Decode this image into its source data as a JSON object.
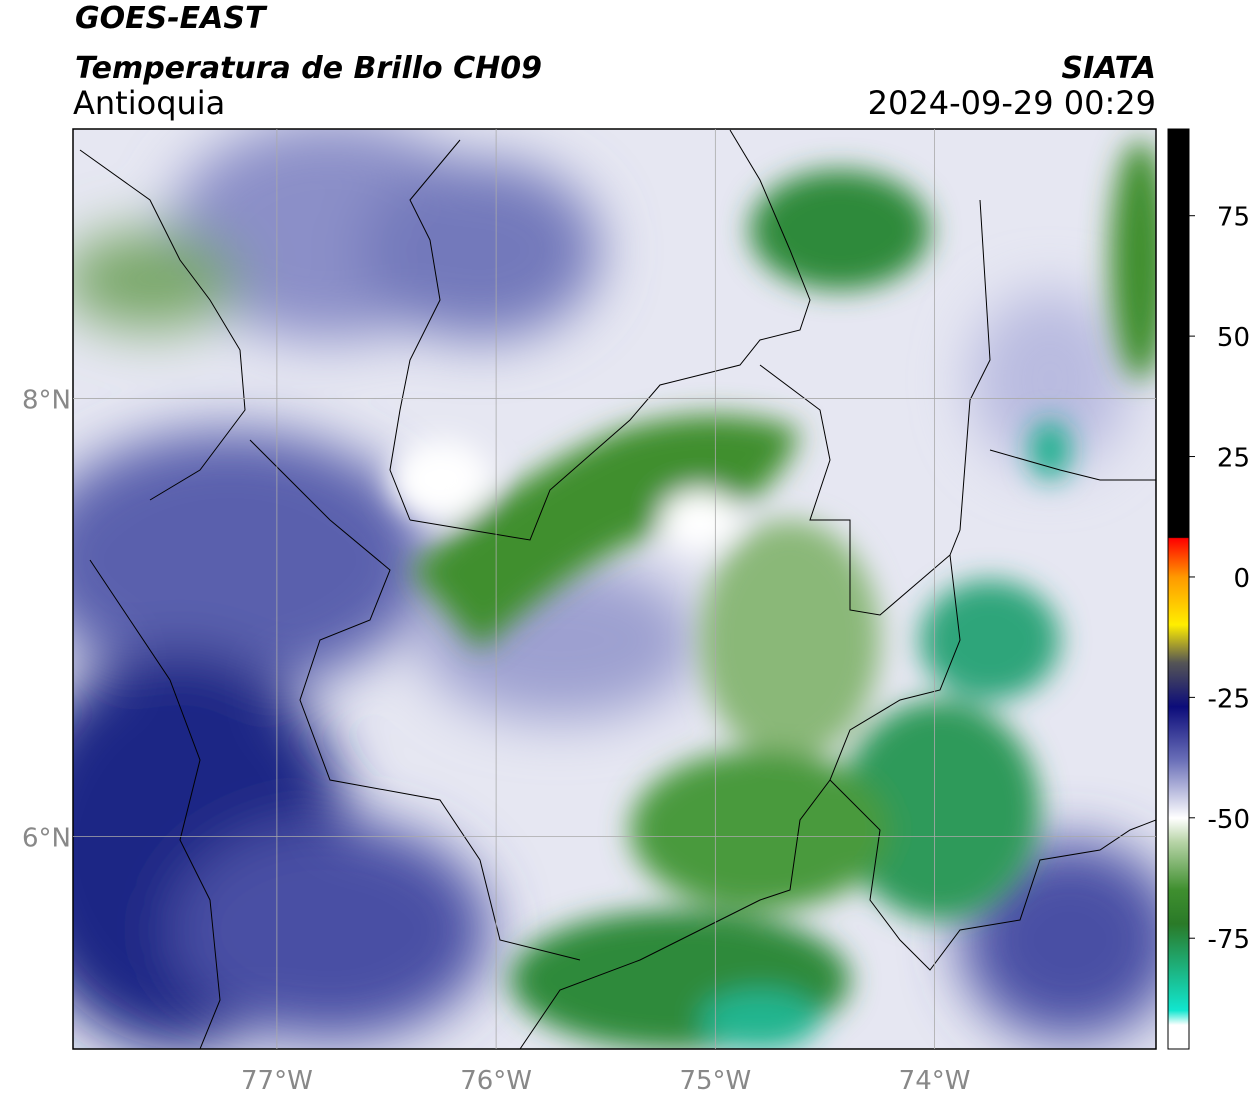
{
  "header": {
    "title": "GOES-EAST",
    "subtitle": "Temperatura de Brillo CH09",
    "region": "Antioquia",
    "source": "SIATA",
    "timestamp": "2024-09-29 00:29"
  },
  "map": {
    "lonlim": [
      -77.93,
      -72.99
    ],
    "latlim": [
      5.03,
      9.23
    ],
    "lonticks": [
      {
        "value": -77,
        "label": "77°W"
      },
      {
        "value": -76,
        "label": "76°W"
      },
      {
        "value": -75,
        "label": "75°W"
      },
      {
        "value": -74,
        "label": "74°W"
      }
    ],
    "latticks": [
      {
        "value": 8,
        "label": "8°N"
      },
      {
        "value": 6,
        "label": "6°N"
      }
    ]
  },
  "colorbar": {
    "lim": [
      -98,
      93
    ],
    "ticks": [
      75,
      50,
      25,
      0,
      -25,
      -50,
      -75
    ]
  }
}
